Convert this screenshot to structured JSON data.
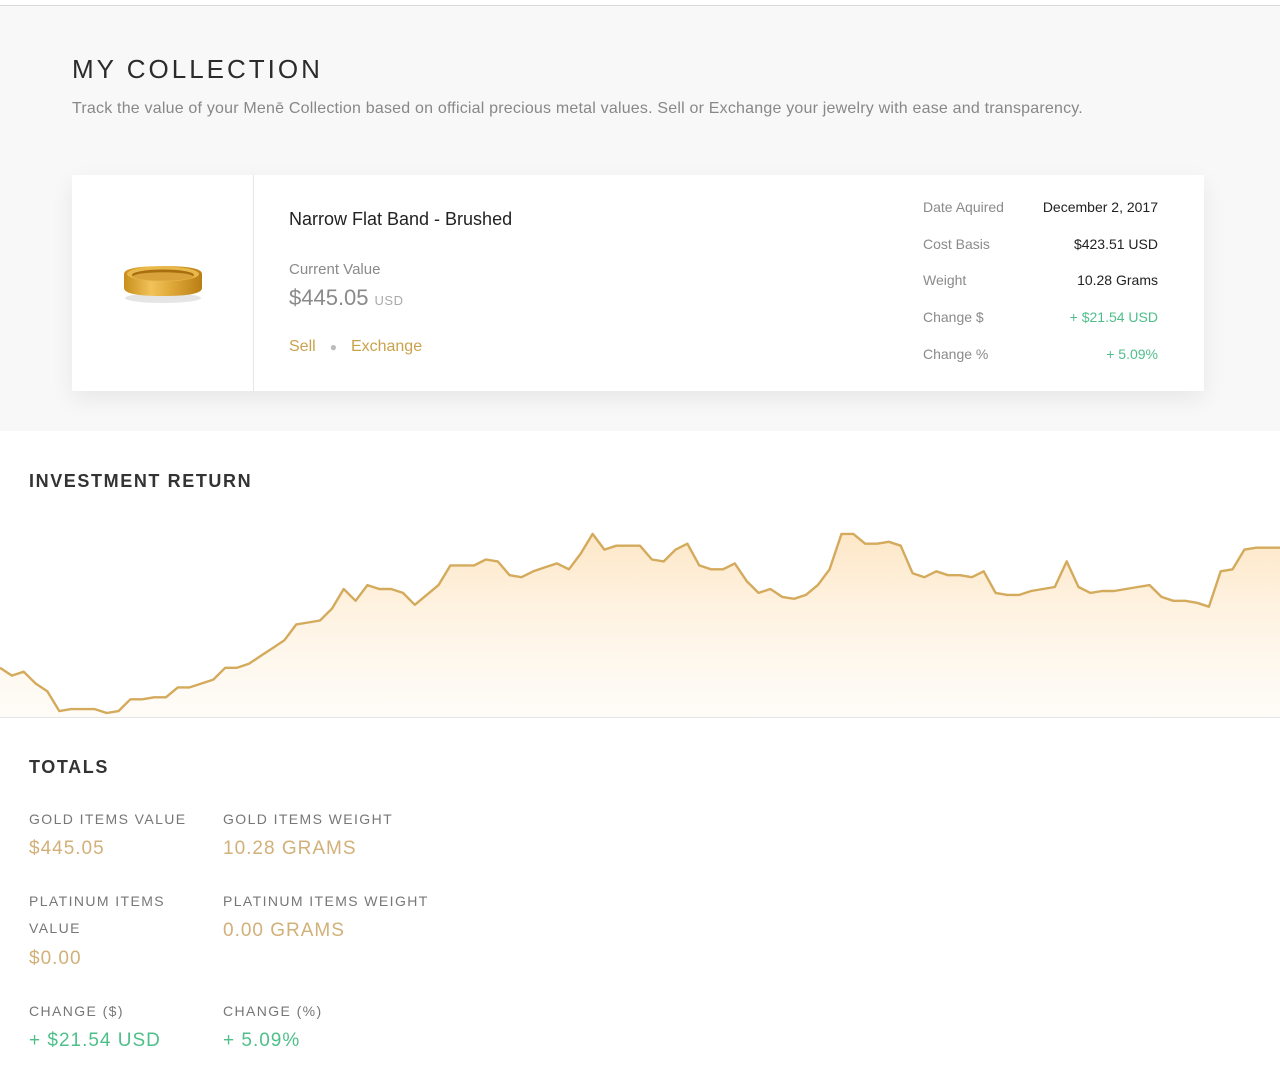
{
  "header": {
    "title": "MY COLLECTION",
    "subtitle": "Track the value of your Menē Collection based on official precious metal values. Sell or Exchange your jewelry with ease and transparency."
  },
  "item": {
    "image_icon": "gold-ring-icon",
    "name": "Narrow Flat Band - Brushed",
    "current_value_label": "Current Value",
    "current_value": "$445.05",
    "current_value_unit": "USD",
    "sell_label": "Sell",
    "exchange_label": "Exchange",
    "details": [
      {
        "label": "Date Aquired",
        "value": "December 2, 2017"
      },
      {
        "label": "Cost Basis",
        "value": "$423.51 USD"
      },
      {
        "label": "Weight",
        "value": "10.28 Grams"
      },
      {
        "label": "Change $",
        "value": "+ $21.54 USD"
      },
      {
        "label": "Change %",
        "value": "+ 5.09%"
      }
    ]
  },
  "investment": {
    "title": "INVESTMENT RETURN"
  },
  "totals": {
    "title": "TOTALS",
    "gold_value_label": "GOLD ITEMS VALUE",
    "gold_value": "$445.05",
    "gold_weight_label": "GOLD ITEMS WEIGHT",
    "gold_weight": "10.28 GRAMS",
    "platinum_value_label_line1": "PLATINUM ITEMS",
    "platinum_value_label_line2": "VALUE",
    "platinum_value": "$0.00",
    "platinum_weight_label": "PLATINUM ITEMS WEIGHT",
    "platinum_weight": "0.00 GRAMS",
    "change_usd_label": "CHANGE ($)",
    "change_usd": "+ $21.54 USD",
    "change_pct_label": "CHANGE (%)",
    "change_pct": "+ 5.09%"
  },
  "colors": {
    "accent_gold": "#c9a24d",
    "value_gold": "#d2b079",
    "positive_green": "#4fbf8a",
    "chart_line": "#d4aa5c",
    "chart_fill": "#fdebd0"
  },
  "chart_data": {
    "type": "area",
    "title": "",
    "values": [
      2,
      1.8,
      1.9,
      1.6,
      1.4,
      0.9,
      0.95,
      0.95,
      0.95,
      0.85,
      0.9,
      1.2,
      1.2,
      1.25,
      1.25,
      1.5,
      1.5,
      1.6,
      1.7,
      2.0,
      2.0,
      2.1,
      2.3,
      2.5,
      2.7,
      3.1,
      3.15,
      3.2,
      3.5,
      4.0,
      3.7,
      4.1,
      4.0,
      4.0,
      3.9,
      3.6,
      3.85,
      4.1,
      4.6,
      4.6,
      4.6,
      4.75,
      4.7,
      4.35,
      4.3,
      4.45,
      4.55,
      4.65,
      4.5,
      4.9,
      5.4,
      5.0,
      5.1,
      5.1,
      5.1,
      4.75,
      4.7,
      5.0,
      5.15,
      4.6,
      4.5,
      4.5,
      4.65,
      4.2,
      3.9,
      4.0,
      3.8,
      3.75,
      3.85,
      4.1,
      4.5,
      5.4,
      5.4,
      5.15,
      5.15,
      5.2,
      5.1,
      4.4,
      4.3,
      4.45,
      4.35,
      4.35,
      4.3,
      4.45,
      3.9,
      3.85,
      3.85,
      3.95,
      4.0,
      4.05,
      4.7,
      4.05,
      3.9,
      3.95,
      3.95,
      4.0,
      4.05,
      4.1,
      3.8,
      3.7,
      3.7,
      3.65,
      3.55,
      4.45,
      4.5,
      5.0,
      5.05,
      5.05,
      5.05
    ],
    "grid": false,
    "legend": "none"
  }
}
